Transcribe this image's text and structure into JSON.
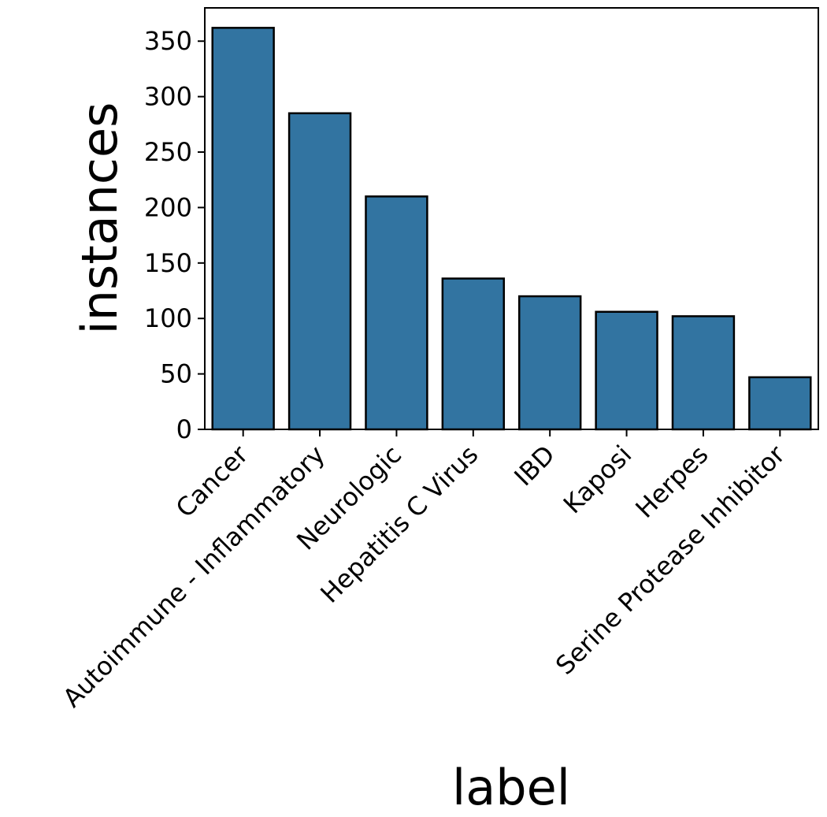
{
  "chart_data": {
    "type": "bar",
    "title": "",
    "xlabel": "label",
    "ylabel": "instances",
    "categories": [
      "Cancer",
      "Autoimmune - Inflammatory",
      "Neurologic",
      "Hepatitis C Virus",
      "IBD",
      "Kaposi",
      "Herpes",
      "Serine Protease Inhibitor"
    ],
    "values": [
      362,
      285,
      210,
      136,
      120,
      106,
      102,
      47
    ],
    "ylim": [
      0,
      380
    ],
    "yticks": [
      0,
      50,
      100,
      150,
      200,
      250,
      300,
      350
    ],
    "grid": false,
    "legend": "none",
    "colors": {
      "bar_fill": "#3274a1",
      "bar_edge": "#000000",
      "axis": "#000000"
    }
  }
}
